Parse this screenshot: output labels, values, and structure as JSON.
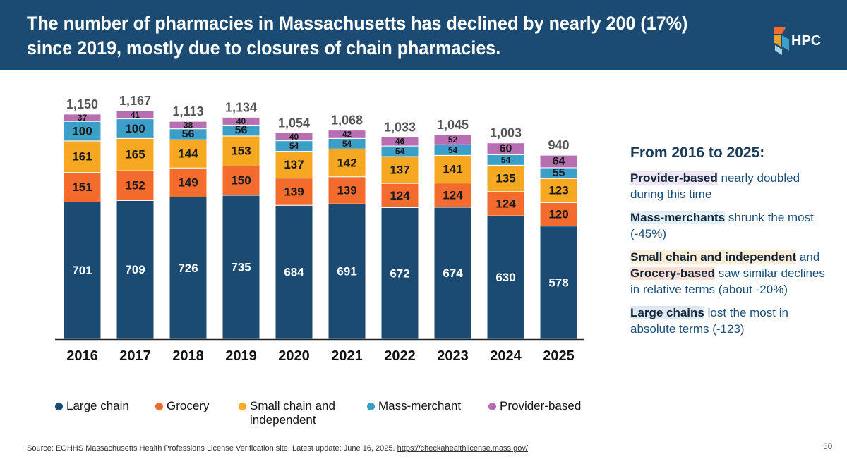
{
  "header": {
    "title": "The number of pharmacies in Massachusetts has declined by nearly 200 (17%) since 2019, mostly due to closures of chain pharmacies.",
    "logo_text": "HPC"
  },
  "chart_data": {
    "type": "bar",
    "stacked": true,
    "categories": [
      "2016",
      "2017",
      "2018",
      "2019",
      "2020",
      "2021",
      "2022",
      "2023",
      "2024",
      "2025"
    ],
    "series": [
      {
        "name": "Large chain",
        "color": "#1b4b72",
        "values": [
          701,
          709,
          726,
          735,
          684,
          691,
          672,
          674,
          630,
          578
        ]
      },
      {
        "name": "Grocery",
        "color": "#f36c2d",
        "values": [
          151,
          152,
          149,
          150,
          139,
          139,
          124,
          124,
          124,
          120
        ]
      },
      {
        "name": "Small chain and independent",
        "color": "#f7a823",
        "values": [
          161,
          165,
          144,
          153,
          137,
          142,
          137,
          141,
          135,
          123
        ]
      },
      {
        "name": "Mass-merchant",
        "color": "#3c9fc8",
        "values": [
          100,
          100,
          56,
          56,
          54,
          54,
          54,
          54,
          54,
          55
        ]
      },
      {
        "name": "Provider-based",
        "color": "#b86fb1",
        "values": [
          37,
          41,
          38,
          40,
          40,
          42,
          46,
          52,
          60,
          64
        ]
      }
    ],
    "totals": [
      "1,150",
      "1,167",
      "1,113",
      "1,134",
      "1,054",
      "1,068",
      "1,033",
      "1,045",
      "1,003",
      "940"
    ],
    "ylim": [
      0,
      1200
    ],
    "grid": false,
    "legend_position": "bottom"
  },
  "legend": [
    {
      "label": "Large chain",
      "color": "#1b4b72"
    },
    {
      "label": "Grocery",
      "color": "#f36c2d"
    },
    {
      "label": "Small chain and independent",
      "color": "#f7a823"
    },
    {
      "label": "Mass-merchant",
      "color": "#3c9fc8"
    },
    {
      "label": "Provider-based",
      "color": "#b86fb1"
    }
  ],
  "panel": {
    "title": "From 2016 to 2025:",
    "p1_bold": "Provider-based",
    "p1_rest": " nearly doubled during this time",
    "p2_bold": "Mass-merchants",
    "p2_rest": " shrunk the most (-45%)",
    "p3_bold": "Small chain and independent",
    "p3_mid": " and ",
    "p3_bold2": "Grocery-based",
    "p3_rest": " saw similar declines in relative terms (about -20%)",
    "p4_bold": "Large chains",
    "p4_rest": " lost the most in absolute terms (-123)"
  },
  "footer": {
    "source_text": "Source: EOHHS Massachusetts Health Professions License Verification site. Latest update: June 16, 2025.",
    "source_link": "https://checkahealthlicense.mass.gov/",
    "page_number": "50"
  }
}
